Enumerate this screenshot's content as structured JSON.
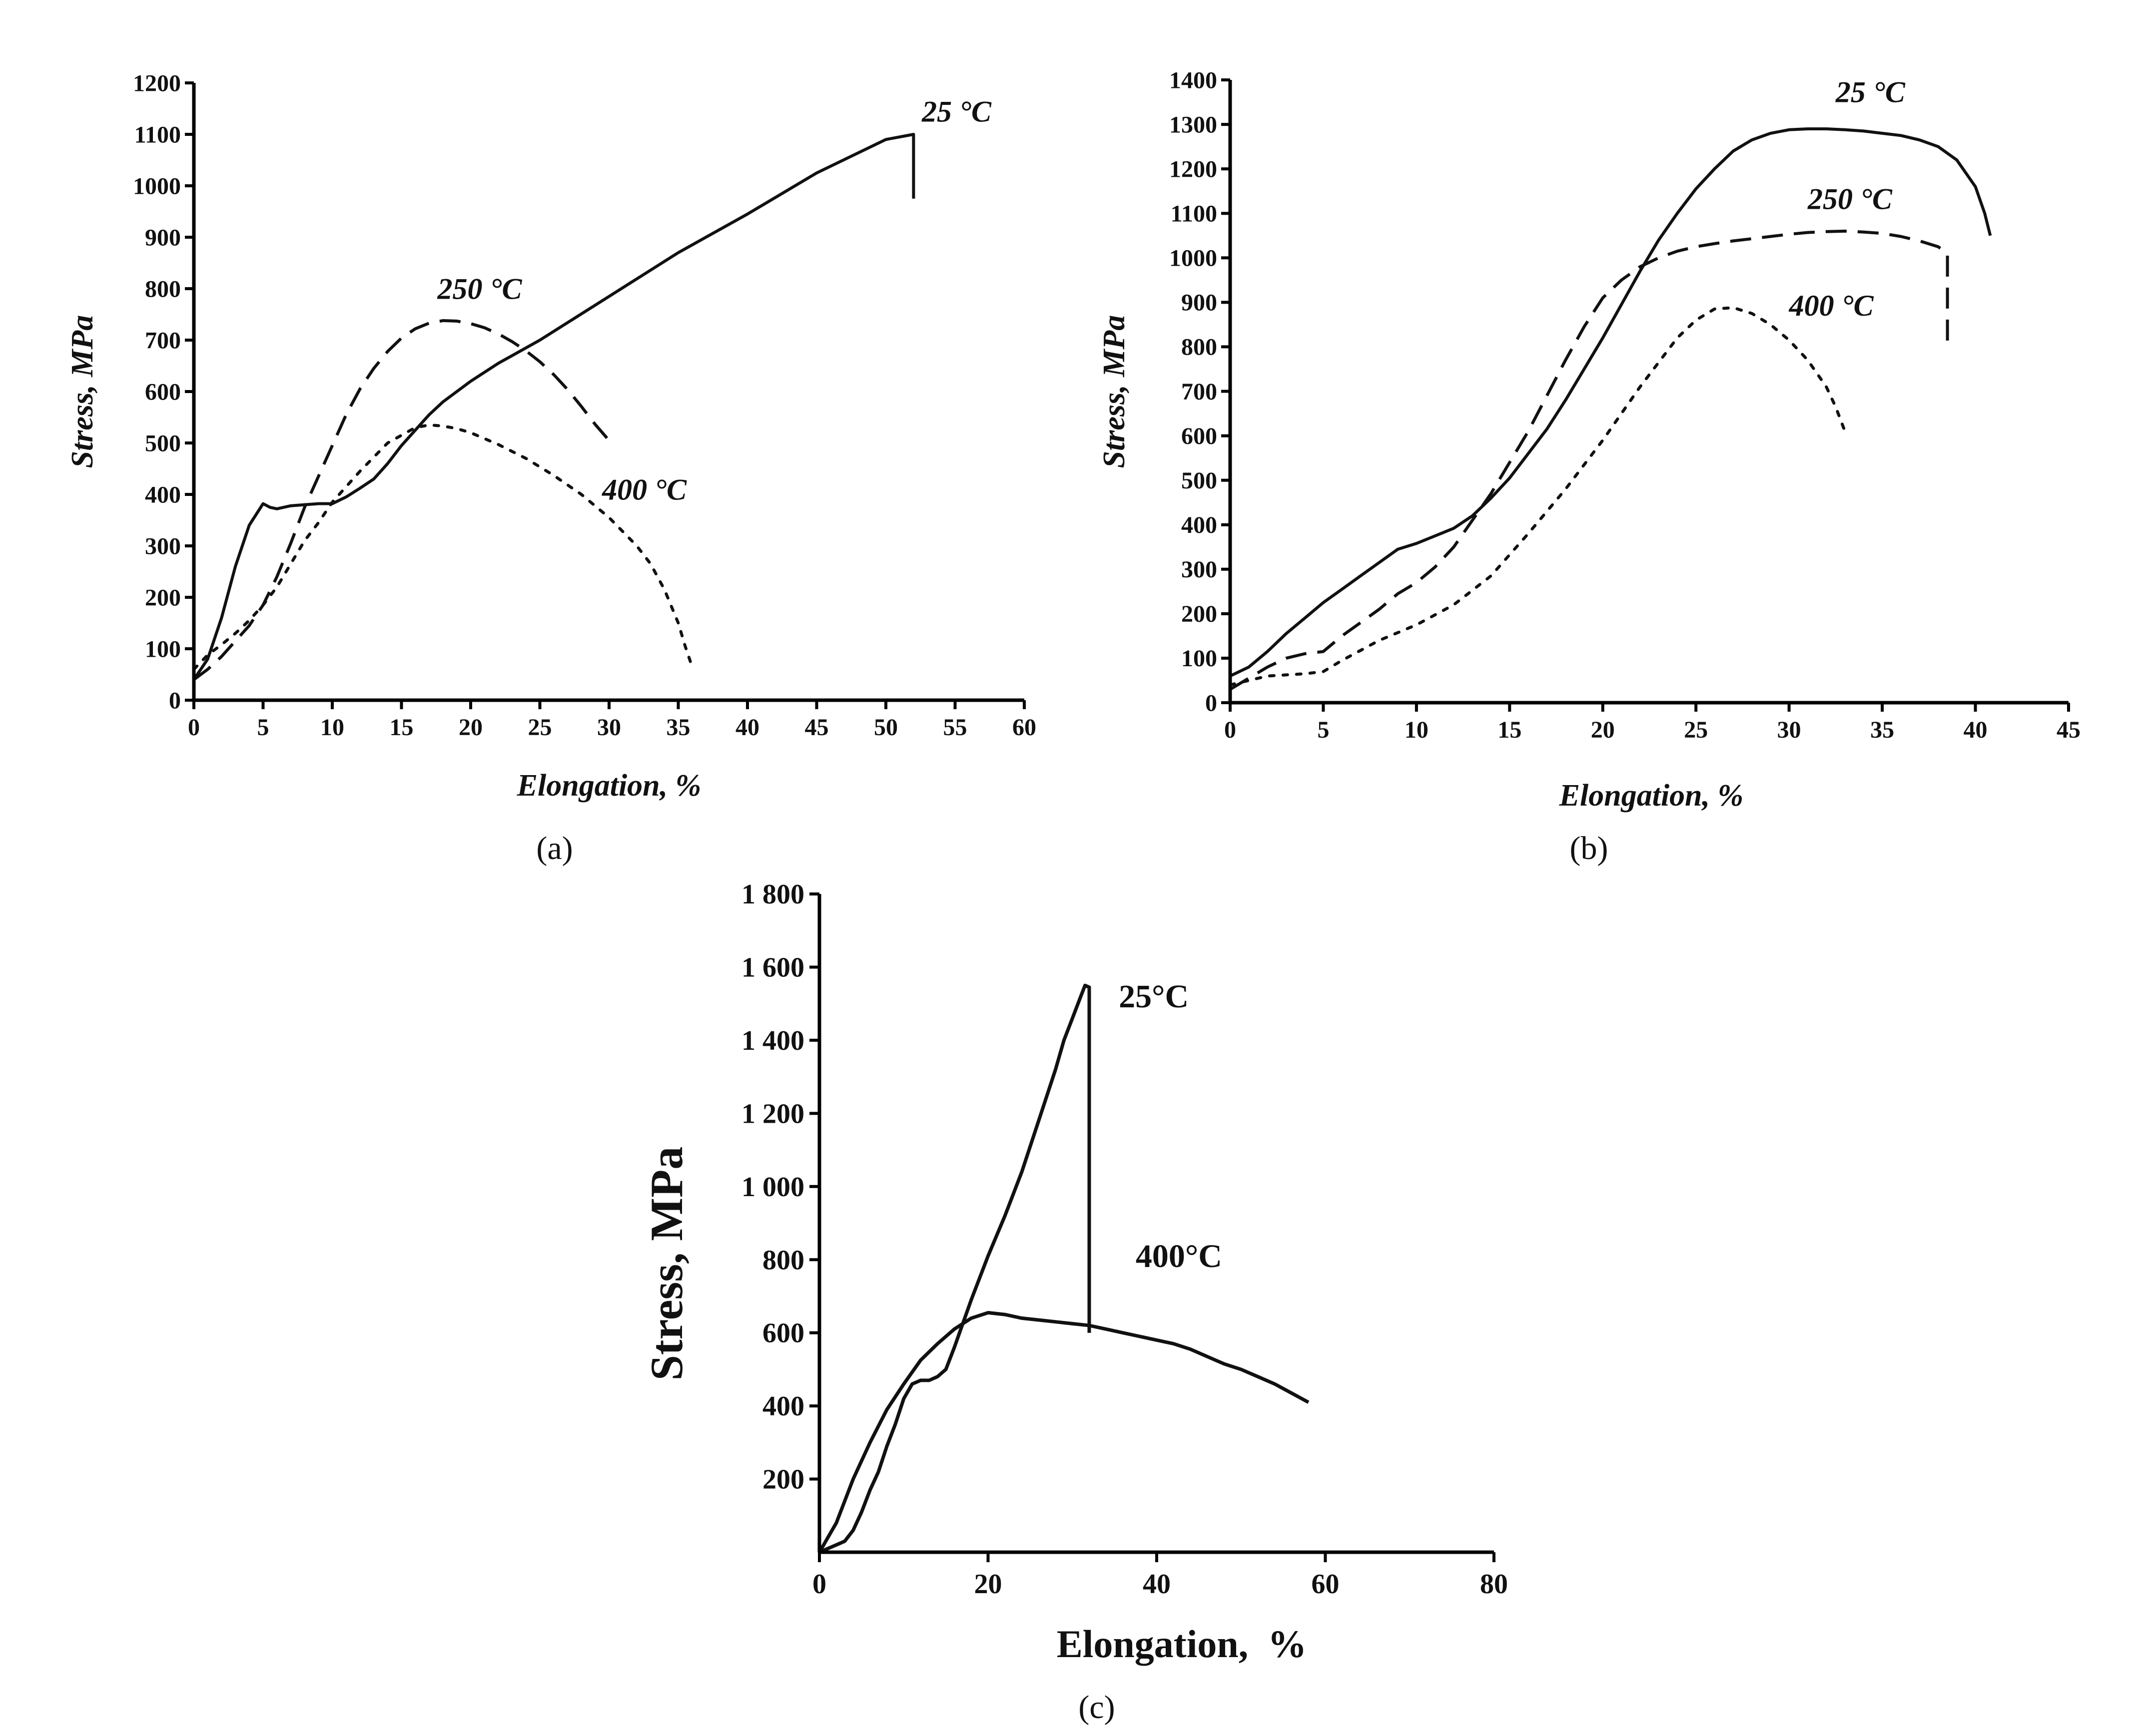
{
  "chart_data": [
    {
      "type": "line",
      "panel": "a",
      "panel_label": "(a)",
      "title": "",
      "xlabel": "Elongation, %",
      "ylabel": "Stress, MPa",
      "xlim": [
        0,
        60
      ],
      "ylim": [
        0,
        1200
      ],
      "x_ticks": [
        0,
        5,
        10,
        15,
        20,
        25,
        30,
        35,
        40,
        45,
        50,
        55,
        60
      ],
      "y_ticks": [
        0,
        100,
        200,
        300,
        400,
        500,
        600,
        700,
        800,
        900,
        1000,
        1100,
        1200
      ],
      "grid": false,
      "series": [
        {
          "name": "25 °C",
          "style": "solid",
          "x": [
            0,
            1,
            2,
            3,
            4,
            5,
            5.5,
            6,
            7,
            8,
            9,
            10,
            11,
            12,
            13,
            14,
            15,
            16,
            17,
            18,
            19,
            20,
            22,
            25,
            30,
            35,
            40,
            45,
            50,
            52,
            52
          ],
          "y": [
            40,
            80,
            160,
            260,
            340,
            382,
            375,
            372,
            378,
            380,
            382,
            382,
            395,
            412,
            430,
            460,
            495,
            525,
            555,
            580,
            600,
            620,
            655,
            700,
            785,
            870,
            945,
            1025,
            1090,
            1100,
            975
          ]
        },
        {
          "name": "250 °C",
          "style": "dashed",
          "x": [
            0,
            1,
            2,
            3,
            4,
            5,
            6,
            7,
            8,
            9,
            10,
            11,
            12,
            13,
            14,
            15,
            16,
            17,
            18,
            19,
            20,
            21,
            22,
            23,
            24,
            25,
            26,
            27,
            28,
            29,
            30
          ],
          "y": [
            40,
            60,
            85,
            115,
            145,
            185,
            240,
            305,
            375,
            435,
            495,
            555,
            605,
            645,
            678,
            704,
            722,
            733,
            738,
            737,
            732,
            724,
            712,
            697,
            679,
            658,
            633,
            604,
            571,
            536,
            505
          ]
        },
        {
          "name": "400 °C",
          "style": "dotted",
          "x": [
            0,
            1,
            2,
            3,
            4,
            5,
            6,
            7,
            8,
            9,
            10,
            12,
            14,
            16,
            17,
            18,
            19,
            20,
            22,
            24,
            26,
            28,
            30,
            32,
            33,
            34,
            35,
            35.5,
            36
          ],
          "y": [
            60,
            88,
            108,
            130,
            155,
            185,
            220,
            265,
            310,
            345,
            385,
            445,
            500,
            530,
            535,
            533,
            528,
            520,
            497,
            470,
            437,
            400,
            355,
            300,
            265,
            215,
            150,
            105,
            65
          ]
        }
      ],
      "annotations": [
        {
          "text": "25 °C",
          "x": 52.6,
          "y": 1125
        },
        {
          "text": "250 °C",
          "x": 17.6,
          "y": 780
        },
        {
          "text": "400 °C",
          "x": 29.5,
          "y": 390
        }
      ]
    },
    {
      "type": "line",
      "panel": "b",
      "panel_label": "(b)",
      "title": "",
      "xlabel": "Elongation, %",
      "ylabel": "Stress, MPa",
      "xlim": [
        0,
        45
      ],
      "ylim": [
        0,
        1400
      ],
      "x_ticks": [
        0,
        5,
        10,
        15,
        20,
        25,
        30,
        35,
        40,
        45
      ],
      "y_ticks": [
        0,
        100,
        200,
        300,
        400,
        500,
        600,
        700,
        800,
        900,
        1000,
        1100,
        1200,
        1300,
        1400
      ],
      "grid": false,
      "series": [
        {
          "name": "25 °C",
          "style": "solid",
          "x": [
            0,
            1,
            2,
            3,
            4,
            5,
            6,
            7,
            8,
            9,
            10,
            11,
            12,
            13,
            14,
            15,
            16,
            17,
            18,
            19,
            20,
            21,
            22,
            23,
            24,
            25,
            26,
            27,
            28,
            29,
            30,
            31,
            32,
            33,
            34,
            35,
            36,
            37,
            38,
            39,
            40,
            40.5,
            40.8
          ],
          "y": [
            60,
            80,
            115,
            155,
            190,
            225,
            255,
            285,
            315,
            345,
            358,
            375,
            392,
            420,
            460,
            505,
            560,
            615,
            680,
            750,
            820,
            895,
            970,
            1040,
            1100,
            1155,
            1200,
            1240,
            1265,
            1280,
            1288,
            1290,
            1290,
            1288,
            1285,
            1280,
            1275,
            1265,
            1250,
            1220,
            1160,
            1100,
            1050
          ]
        },
        {
          "name": "250 °C",
          "style": "dashed",
          "x": [
            0,
            1,
            2,
            3,
            4,
            5,
            6,
            7,
            8,
            9,
            10,
            11,
            12,
            13,
            14,
            15,
            16,
            17,
            18,
            19,
            20,
            21,
            22,
            23,
            24,
            25,
            26,
            27,
            28,
            29,
            30,
            31,
            32,
            33,
            34,
            35,
            36,
            37,
            38,
            38.5,
            38.5
          ],
          "y": [
            30,
            55,
            80,
            100,
            110,
            115,
            150,
            180,
            210,
            245,
            270,
            305,
            350,
            410,
            470,
            540,
            610,
            690,
            770,
            845,
            910,
            950,
            980,
            1000,
            1015,
            1025,
            1032,
            1038,
            1043,
            1048,
            1053,
            1057,
            1059,
            1060,
            1058,
            1055,
            1048,
            1038,
            1025,
            1010,
            790
          ]
        },
        {
          "name": "400 °C",
          "style": "dotted",
          "x": [
            0,
            2,
            4,
            5,
            6,
            8,
            10,
            12,
            14,
            16,
            18,
            20,
            22,
            24,
            25,
            26,
            27,
            28,
            29,
            30,
            31,
            32,
            32.5,
            33
          ],
          "y": [
            40,
            60,
            65,
            70,
            95,
            140,
            175,
            220,
            285,
            380,
            480,
            590,
            710,
            820,
            860,
            885,
            888,
            875,
            850,
            815,
            770,
            710,
            665,
            610
          ]
        }
      ],
      "annotations": [
        {
          "text": "25 °C",
          "x": 32.5,
          "y": 1350
        },
        {
          "text": "250 °C",
          "x": 31.0,
          "y": 1110
        },
        {
          "text": "400 °C",
          "x": 30.0,
          "y": 870
        }
      ]
    },
    {
      "type": "line",
      "panel": "c",
      "panel_label": "(c)",
      "title": "",
      "xlabel": "Elongation,  %",
      "ylabel": "Stress, MPa",
      "xlim": [
        0,
        80
      ],
      "ylim": [
        0,
        1800
      ],
      "x_ticks": [
        0,
        20,
        40,
        60,
        80
      ],
      "y_tick_values": [
        200,
        400,
        600,
        800,
        1000,
        1200,
        1400,
        1600,
        1800
      ],
      "y_tick_labels": [
        "200",
        "400",
        "600",
        "800",
        "1 000",
        "1 200",
        "1 400",
        "1 600",
        "1 800"
      ],
      "grid": false,
      "series": [
        {
          "name": "25°C",
          "style": "solid",
          "x": [
            0,
            2,
            3,
            4,
            5,
            6,
            7,
            8,
            9,
            10,
            11,
            12,
            13,
            14,
            15,
            16,
            18,
            20,
            22,
            24,
            26,
            28,
            29,
            30,
            31,
            31.5,
            32,
            32
          ],
          "y": [
            0,
            20,
            30,
            60,
            110,
            170,
            220,
            290,
            350,
            420,
            460,
            470,
            470,
            480,
            500,
            560,
            690,
            810,
            920,
            1040,
            1180,
            1320,
            1400,
            1460,
            1520,
            1550,
            1545,
            600
          ]
        },
        {
          "name": "400°C",
          "style": "solid",
          "x": [
            0,
            2,
            4,
            6,
            8,
            10,
            12,
            14,
            16,
            18,
            20,
            22,
            24,
            26,
            28,
            30,
            32,
            34,
            36,
            38,
            40,
            42,
            44,
            46,
            48,
            50,
            52,
            54,
            56,
            58
          ],
          "y": [
            0,
            80,
            200,
            300,
            390,
            460,
            525,
            570,
            610,
            640,
            655,
            650,
            640,
            635,
            630,
            625,
            620,
            610,
            600,
            590,
            580,
            570,
            555,
            535,
            515,
            500,
            480,
            460,
            435,
            410
          ]
        }
      ],
      "annotations": [
        {
          "text": "25°C",
          "x": 35.5,
          "y": 1490
        },
        {
          "text": "400°C",
          "x": 37.5,
          "y": 780
        }
      ]
    }
  ]
}
